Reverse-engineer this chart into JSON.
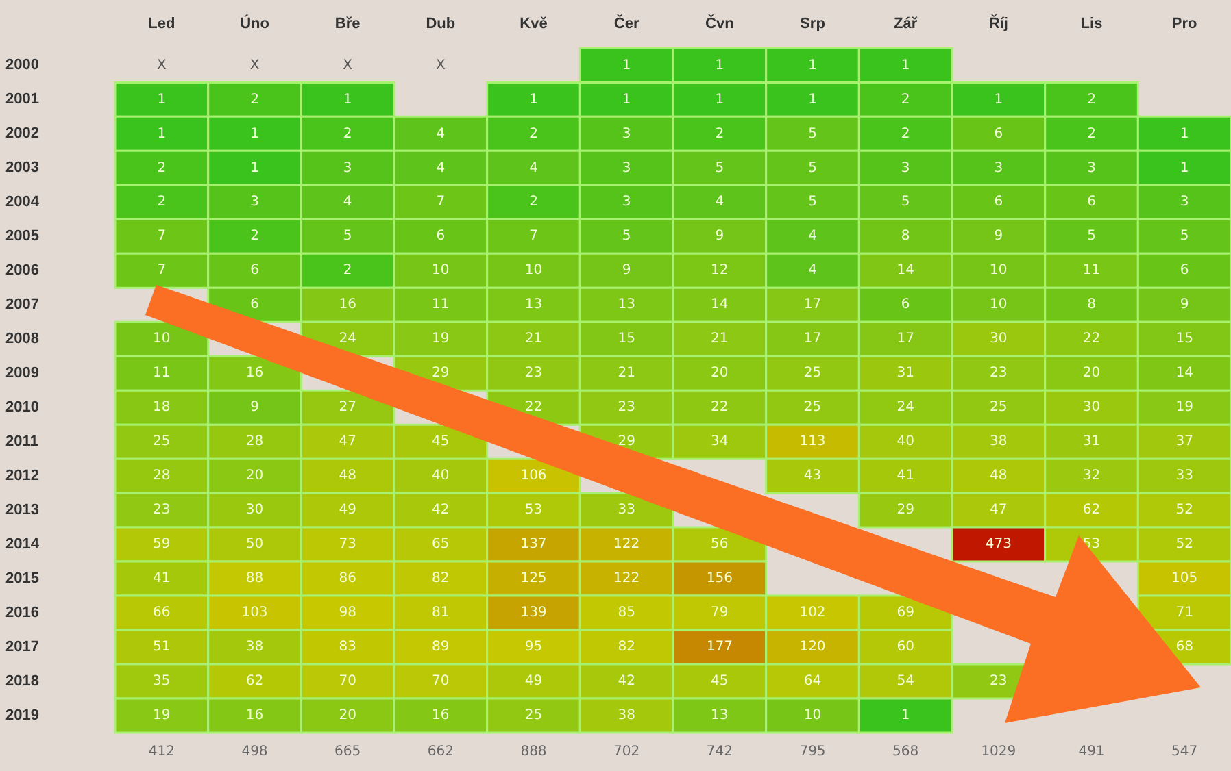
{
  "chart_data": {
    "type": "heatmap",
    "categories": [
      "Led",
      "Úno",
      "Bře",
      "Dub",
      "Kvě",
      "Čer",
      "Čvn",
      "Srp",
      "Zář",
      "Říj",
      "Lis",
      "Pro"
    ],
    "y_categories": [
      "2000",
      "2001",
      "2002",
      "2003",
      "2004",
      "2005",
      "2006",
      "2007",
      "2008",
      "2009",
      "2010",
      "2011",
      "2012",
      "2013",
      "2014",
      "2015",
      "2016",
      "2017",
      "2018",
      "2019"
    ],
    "cells": [
      [
        null,
        null,
        null,
        null,
        null,
        1,
        1,
        1,
        1,
        null,
        null,
        null
      ],
      [
        1,
        2,
        1,
        null,
        1,
        1,
        1,
        1,
        2,
        1,
        2,
        null
      ],
      [
        1,
        1,
        2,
        4,
        2,
        3,
        2,
        5,
        2,
        6,
        2,
        1
      ],
      [
        2,
        1,
        3,
        4,
        4,
        3,
        5,
        5,
        3,
        3,
        3,
        1
      ],
      [
        2,
        3,
        4,
        7,
        2,
        3,
        4,
        5,
        5,
        6,
        6,
        3
      ],
      [
        7,
        2,
        5,
        6,
        7,
        5,
        9,
        4,
        8,
        9,
        5,
        5
      ],
      [
        7,
        6,
        2,
        10,
        10,
        9,
        12,
        4,
        14,
        10,
        11,
        6
      ],
      [
        null,
        6,
        16,
        11,
        13,
        13,
        14,
        17,
        6,
        10,
        8,
        9
      ],
      [
        10,
        null,
        24,
        19,
        21,
        15,
        21,
        17,
        17,
        30,
        22,
        15
      ],
      [
        11,
        16,
        null,
        29,
        23,
        21,
        20,
        25,
        31,
        23,
        20,
        14
      ],
      [
        18,
        9,
        27,
        null,
        22,
        23,
        22,
        25,
        24,
        25,
        30,
        19
      ],
      [
        25,
        28,
        47,
        45,
        null,
        29,
        34,
        113,
        40,
        38,
        31,
        37
      ],
      [
        28,
        20,
        48,
        40,
        106,
        null,
        null,
        43,
        41,
        48,
        32,
        33
      ],
      [
        23,
        30,
        49,
        42,
        53,
        33,
        null,
        null,
        29,
        47,
        62,
        52
      ],
      [
        59,
        50,
        73,
        65,
        137,
        122,
        56,
        null,
        null,
        473,
        53,
        52
      ],
      [
        41,
        88,
        86,
        82,
        125,
        122,
        156,
        null,
        null,
        null,
        null,
        105
      ],
      [
        66,
        103,
        98,
        81,
        139,
        85,
        79,
        102,
        69,
        null,
        null,
        71
      ],
      [
        51,
        38,
        83,
        89,
        95,
        82,
        177,
        120,
        60,
        null,
        null,
        68
      ],
      [
        35,
        62,
        70,
        70,
        49,
        42,
        45,
        64,
        54,
        23,
        null,
        null
      ],
      [
        19,
        16,
        20,
        16,
        25,
        38,
        13,
        10,
        1,
        null,
        null,
        null
      ]
    ],
    "cell_labels": [
      [
        "X",
        "X",
        "X",
        "X",
        null,
        "1",
        "1",
        "1",
        "1",
        null,
        null,
        null
      ],
      [
        "1",
        "2",
        "1",
        null,
        "1",
        "1",
        "1",
        "1",
        "2",
        "1",
        "2",
        null
      ],
      [
        "1",
        "1",
        "2",
        "4",
        "2",
        "3",
        "2",
        "5",
        "2",
        "6",
        "2",
        "1"
      ],
      [
        "2",
        "1",
        "3",
        "4",
        "4",
        "3",
        "5",
        "5",
        "3",
        "3",
        "3",
        "1"
      ],
      [
        "2",
        "3",
        "4",
        "7",
        "2",
        "3",
        "4",
        "5",
        "5",
        "6",
        "6",
        "3"
      ],
      [
        "7",
        "2",
        "5",
        "6",
        "7",
        "5",
        "9",
        "4",
        "8",
        "9",
        "5",
        "5"
      ],
      [
        "7",
        "6",
        "2",
        "10",
        "10",
        "9",
        "12",
        "4",
        "14",
        "10",
        "11",
        "6"
      ],
      [
        null,
        "6",
        "16",
        "11",
        "13",
        "13",
        "14",
        "17",
        "6",
        "10",
        "8",
        "9"
      ],
      [
        "10",
        null,
        "24",
        "19",
        "21",
        "15",
        "21",
        "17",
        "17",
        "30",
        "22",
        "15"
      ],
      [
        "11",
        "16",
        null,
        "29",
        "23",
        "21",
        "20",
        "25",
        "31",
        "23",
        "20",
        "14"
      ],
      [
        "18",
        "9",
        "27",
        null,
        "22",
        "23",
        "22",
        "25",
        "24",
        "25",
        "30",
        "19"
      ],
      [
        "25",
        "28",
        "47",
        "45",
        null,
        "29",
        "34",
        "113",
        "40",
        "38",
        "31",
        "37"
      ],
      [
        "28",
        "20",
        "48",
        "40",
        "106",
        null,
        null,
        "43",
        "41",
        "48",
        "32",
        "33"
      ],
      [
        "23",
        "30",
        "49",
        "42",
        "53",
        "33",
        null,
        null,
        "29",
        "47",
        "62",
        "52"
      ],
      [
        "59",
        "50",
        "73",
        "65",
        "137",
        "122",
        "56",
        null,
        null,
        "473",
        "53",
        "52"
      ],
      [
        "41",
        "88",
        "86",
        "82",
        "125",
        "122",
        "156",
        null,
        null,
        null,
        null,
        "105"
      ],
      [
        "66",
        "103",
        "98",
        "81",
        "139",
        "85",
        "79",
        "102",
        "69",
        null,
        null,
        "71"
      ],
      [
        "51",
        "38",
        "83",
        "89",
        "95",
        "82",
        "177",
        "120",
        "60",
        null,
        null,
        "68"
      ],
      [
        "35",
        "62",
        "70",
        "70",
        "49",
        "42",
        "45",
        "64",
        "54",
        "23",
        null,
        null
      ],
      [
        "19",
        "16",
        "20",
        "16",
        "25",
        "38",
        "13",
        "10",
        "1",
        null,
        null,
        null
      ]
    ],
    "colors": [
      "#1ec31e",
      "#5cc31a",
      "#8cc814",
      "#c8c800",
      "#c01800"
    ],
    "totals": [
      "412",
      "498",
      "665",
      "662",
      "888",
      "702",
      "742",
      "795",
      "568",
      "1029",
      "491",
      "547"
    ]
  }
}
